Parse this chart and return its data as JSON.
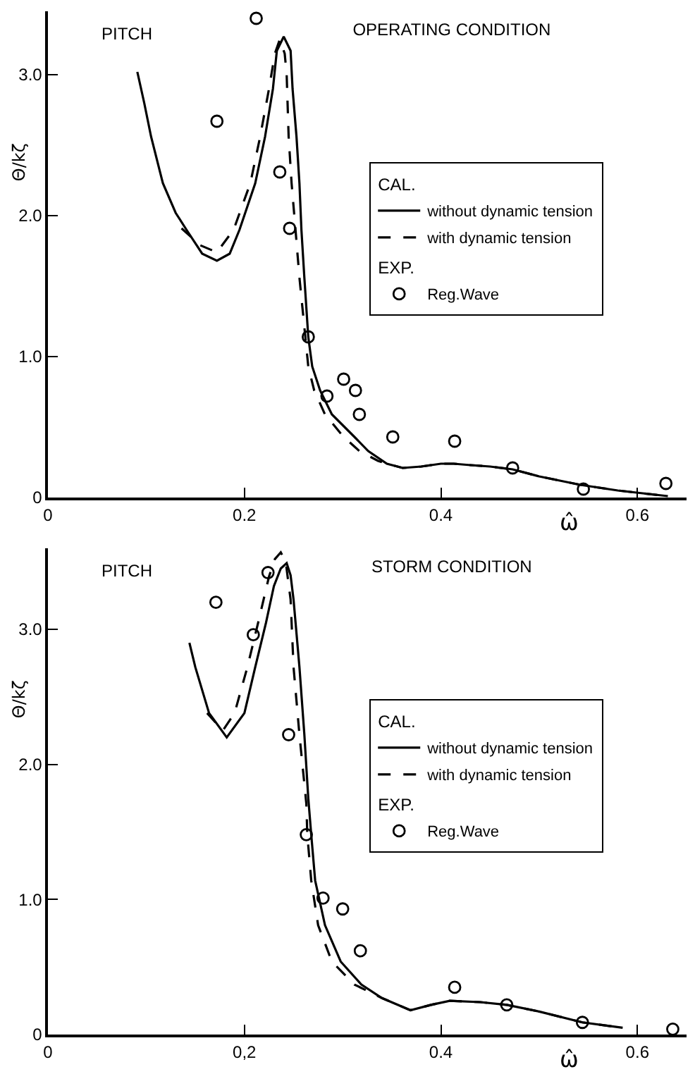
{
  "chart_data": [
    {
      "type": "line",
      "title": "OPERATING CONDITION",
      "xlabel": "ω̂",
      "ylabel": "Θ/kζ",
      "annotations": [
        "PITCH",
        "CAL.",
        "EXP."
      ],
      "xlim": [
        0,
        0.65
      ],
      "ylim": [
        0,
        3.45
      ],
      "xticks": [
        0,
        0.2,
        0.4,
        0.6
      ],
      "yticks": [
        0,
        {
          "value": 1,
          "label": "1.0"
        },
        {
          "value": 2,
          "label": "2.0"
        },
        {
          "value": 3,
          "label": "3.0"
        }
      ],
      "legend": "right",
      "series": [
        {
          "name": "without dynamic tension",
          "line_style": "solid",
          "color": "#000000",
          "x": [
            0.091,
            0.098,
            0.105,
            0.117,
            0.13,
            0.141,
            0.157,
            0.172,
            0.185,
            0.195,
            0.211,
            0.221,
            0.229,
            0.233,
            0.24,
            0.247,
            0.249,
            0.253,
            0.256,
            0.258,
            0.261,
            0.265,
            0.269,
            0.277,
            0.289,
            0.312,
            0.326,
            0.345,
            0.361,
            0.38,
            0.4,
            0.413,
            0.43,
            0.45,
            0.473,
            0.5,
            0.542,
            0.58,
            0.631
          ],
          "values": [
            3.02,
            2.8,
            2.56,
            2.23,
            2.02,
            1.9,
            1.73,
            1.68,
            1.73,
            1.9,
            2.23,
            2.56,
            2.9,
            3.17,
            3.27,
            3.17,
            2.9,
            2.56,
            2.23,
            1.9,
            1.56,
            1.14,
            0.93,
            0.76,
            0.59,
            0.43,
            0.33,
            0.24,
            0.21,
            0.22,
            0.24,
            0.24,
            0.23,
            0.22,
            0.2,
            0.15,
            0.09,
            0.05,
            0.01
          ]
        },
        {
          "name": "with dynamic tension",
          "line_style": "dashed",
          "color": "#000000",
          "x": [
            0.136,
            0.155,
            0.172,
            0.189,
            0.206,
            0.216,
            0.225,
            0.231,
            0.236,
            0.241,
            0.243,
            0.245,
            0.248,
            0.252,
            0.256,
            0.262,
            0.265,
            0.271,
            0.282,
            0.301,
            0.317,
            0.336,
            0.345,
            0.361,
            0.38,
            0.4,
            0.413,
            0.43,
            0.45,
            0.473,
            0.5,
            0.542,
            0.58,
            0.631
          ],
          "values": [
            1.91,
            1.79,
            1.74,
            1.9,
            2.23,
            2.56,
            2.9,
            3.15,
            3.25,
            3.15,
            3.0,
            2.56,
            2.23,
            1.9,
            1.56,
            1.14,
            0.93,
            0.76,
            0.59,
            0.43,
            0.33,
            0.26,
            0.24,
            0.21,
            0.22,
            0.24,
            0.24,
            0.23,
            0.22,
            0.2,
            0.15,
            0.09,
            0.05,
            0.01
          ]
        },
        {
          "name": "Reg.Wave",
          "type": "scatter",
          "marker": "circle",
          "color": "#000000",
          "x": [
            0.172,
            0.212,
            0.236,
            0.246,
            0.265,
            0.284,
            0.301,
            0.313,
            0.317,
            0.351,
            0.414,
            0.473,
            0.545,
            0.629
          ],
          "values": [
            2.67,
            3.4,
            2.31,
            1.91,
            1.14,
            0.72,
            0.84,
            0.76,
            0.59,
            0.43,
            0.4,
            0.21,
            0.06,
            0.1
          ]
        }
      ]
    },
    {
      "type": "line",
      "title": "STORM CONDITION",
      "xlabel": "ω̂",
      "ylabel": "Θ/kζ",
      "annotations": [
        "PITCH",
        "CAL.",
        "EXP."
      ],
      "xlim": [
        0,
        0.65
      ],
      "ylim": [
        0,
        3.6
      ],
      "xticks": [
        0,
        {
          "value": 0.2,
          "label": "0,2"
        },
        0.4,
        0.6
      ],
      "yticks": [
        0,
        {
          "value": 1,
          "label": "1.0"
        },
        {
          "value": 2,
          "label": "2.0"
        },
        {
          "value": 3,
          "label": "3.0"
        }
      ],
      "legend": "right",
      "series": [
        {
          "name": "without dynamic tension",
          "line_style": "solid",
          "color": "#000000",
          "x": [
            0.144,
            0.15,
            0.164,
            0.182,
            0.2,
            0.211,
            0.222,
            0.23,
            0.237,
            0.243,
            0.247,
            0.25,
            0.256,
            0.261,
            0.265,
            0.268,
            0.272,
            0.282,
            0.298,
            0.319,
            0.34,
            0.369,
            0.39,
            0.409,
            0.44,
            0.467,
            0.5,
            0.544,
            0.585
          ],
          "values": [
            2.9,
            2.72,
            2.38,
            2.2,
            2.38,
            2.72,
            3.05,
            3.32,
            3.45,
            3.49,
            3.4,
            3.22,
            2.72,
            2.22,
            1.75,
            1.48,
            1.14,
            0.81,
            0.54,
            0.37,
            0.27,
            0.18,
            0.22,
            0.25,
            0.24,
            0.22,
            0.17,
            0.09,
            0.05
          ]
        },
        {
          "name": "with dynamic tension",
          "line_style": "dashed",
          "color": "#000000",
          "x": [
            0.162,
            0.178,
            0.19,
            0.203,
            0.214,
            0.225,
            0.231,
            0.237,
            0.242,
            0.247,
            0.25,
            0.256,
            0.263,
            0.264,
            0.268,
            0.275,
            0.289,
            0.312,
            0.326,
            0.34,
            0.369,
            0.39,
            0.409,
            0.44,
            0.467,
            0.5,
            0.544,
            0.585
          ],
          "values": [
            2.38,
            2.25,
            2.38,
            2.72,
            3.05,
            3.39,
            3.52,
            3.57,
            3.5,
            3.22,
            2.72,
            2.22,
            1.71,
            1.48,
            1.14,
            0.81,
            0.54,
            0.37,
            0.32,
            0.27,
            0.18,
            0.22,
            0.25,
            0.24,
            0.22,
            0.17,
            0.09,
            0.05
          ]
        },
        {
          "name": "Reg.Wave",
          "type": "scatter",
          "marker": "circle",
          "color": "#000000",
          "x": [
            0.171,
            0.209,
            0.224,
            0.245,
            0.263,
            0.28,
            0.3,
            0.318,
            0.414,
            0.467,
            0.544,
            0.636
          ],
          "values": [
            3.2,
            2.96,
            3.42,
            2.22,
            1.48,
            1.01,
            0.93,
            0.62,
            0.35,
            0.22,
            0.09,
            0.04
          ]
        }
      ]
    }
  ]
}
